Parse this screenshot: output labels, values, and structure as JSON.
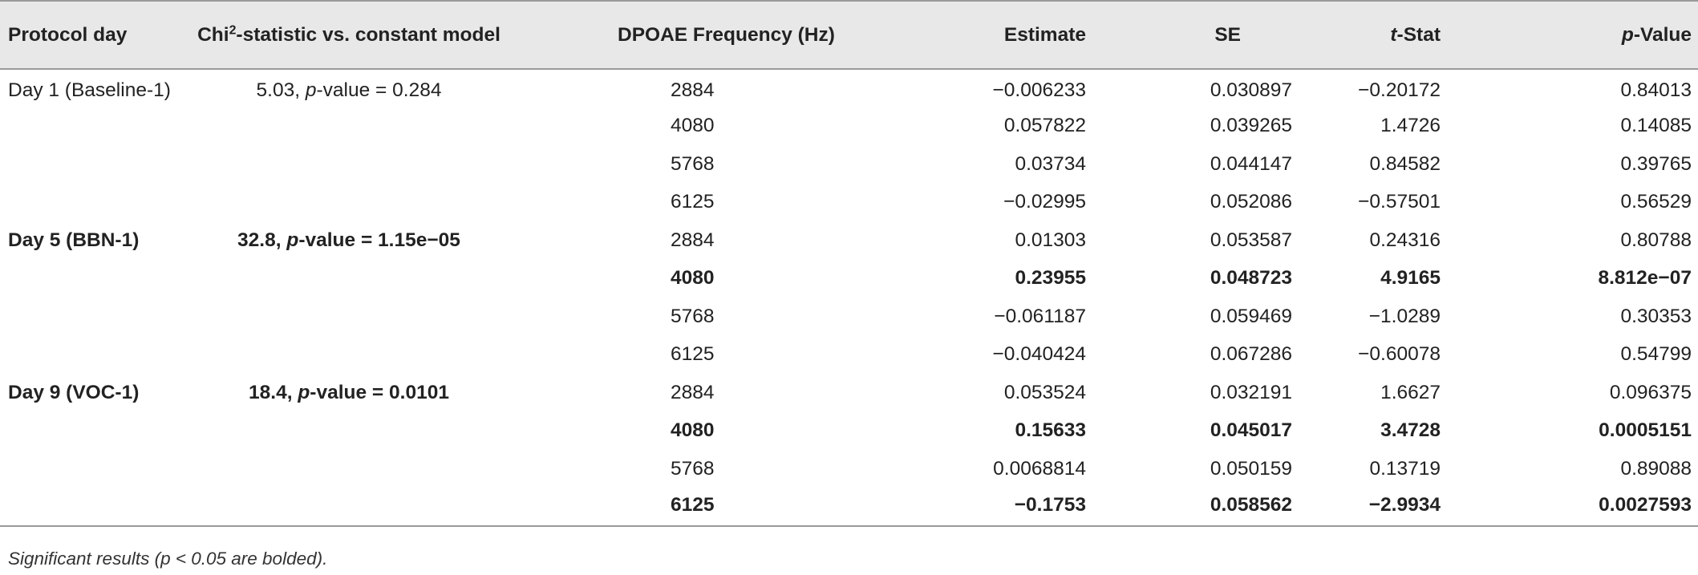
{
  "headers": {
    "protocol_day": "Protocol day",
    "chi_prefix": "Chi",
    "chi_sup": "2",
    "chi_suffix": "-statistic vs. constant model",
    "frequency": "DPOAE Frequency (Hz)",
    "estimate": "Estimate",
    "se": "SE",
    "tstat_italic": "t",
    "tstat_rest": "-Stat",
    "pvalue_italic": "p",
    "pvalue_rest": "-Value"
  },
  "groups": [
    {
      "day": "Day 1 (Baseline-1)",
      "chi_value": "5.03, ",
      "chi_p_label": "p",
      "chi_p_value": "-value = 0.284",
      "bold": false,
      "rows": [
        {
          "freq": "2884",
          "estimate": "−0.006233",
          "se": "0.030897",
          "tstat": "−0.20172",
          "pvalue": "0.84013",
          "bold": false
        },
        {
          "freq": "4080",
          "estimate": "0.057822",
          "se": "0.039265",
          "tstat": "1.4726",
          "pvalue": "0.14085",
          "bold": false
        },
        {
          "freq": "5768",
          "estimate": "0.03734",
          "se": "0.044147",
          "tstat": "0.84582",
          "pvalue": "0.39765",
          "bold": false
        },
        {
          "freq": "6125",
          "estimate": "−0.02995",
          "se": "0.052086",
          "tstat": "−0.57501",
          "pvalue": "0.56529",
          "bold": false
        }
      ]
    },
    {
      "day": "Day 5 (BBN-1)",
      "chi_value": "32.8, ",
      "chi_p_label": "p",
      "chi_p_value": "-value = 1.15e−05",
      "bold": true,
      "rows": [
        {
          "freq": "2884",
          "estimate": "0.01303",
          "se": "0.053587",
          "tstat": "0.24316",
          "pvalue": "0.80788",
          "bold": false
        },
        {
          "freq": "4080",
          "estimate": "0.23955",
          "se": "0.048723",
          "tstat": "4.9165",
          "pvalue": "8.812e−07",
          "bold": true
        },
        {
          "freq": "5768",
          "estimate": "−0.061187",
          "se": "0.059469",
          "tstat": "−1.0289",
          "pvalue": "0.30353",
          "bold": false
        },
        {
          "freq": "6125",
          "estimate": "−0.040424",
          "se": "0.067286",
          "tstat": "−0.60078",
          "pvalue": "0.54799",
          "bold": false
        }
      ]
    },
    {
      "day": "Day 9 (VOC-1)",
      "chi_value": "18.4, ",
      "chi_p_label": "p",
      "chi_p_value": "-value = 0.0101",
      "bold": true,
      "rows": [
        {
          "freq": "2884",
          "estimate": "0.053524",
          "se": "0.032191",
          "tstat": "1.6627",
          "pvalue": "0.096375",
          "bold": false
        },
        {
          "freq": "4080",
          "estimate": "0.15633",
          "se": "0.045017",
          "tstat": "3.4728",
          "pvalue": "0.0005151",
          "bold": true
        },
        {
          "freq": "5768",
          "estimate": "0.0068814",
          "se": "0.050159",
          "tstat": "0.13719",
          "pvalue": "0.89088",
          "bold": false
        },
        {
          "freq": "6125",
          "estimate": "−0.1753",
          "se": "0.058562",
          "tstat": "−2.9934",
          "pvalue": "0.0027593",
          "bold": true
        }
      ]
    }
  ],
  "footnote": "Significant results (p < 0.05 are bolded)."
}
